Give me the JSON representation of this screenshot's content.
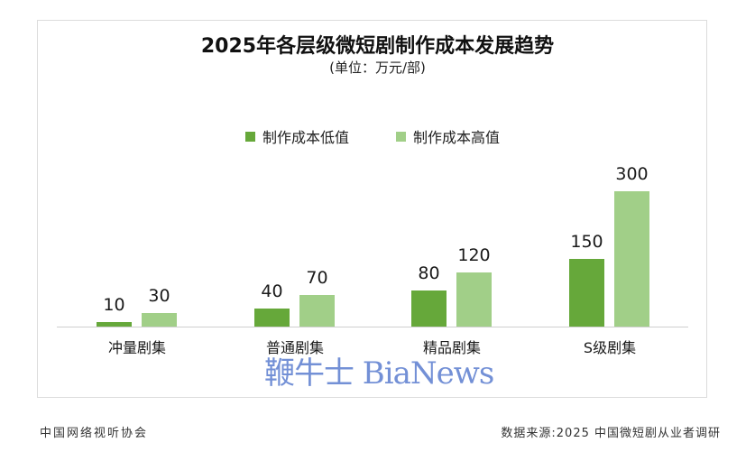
{
  "chart": {
    "title": "2025年各层级微短剧制作成本发展趋势",
    "subtitle": "(单位：万元/部)",
    "legend": [
      {
        "label": "制作成本低值",
        "color": "#66a83a"
      },
      {
        "label": "制作成本高值",
        "color": "#a1cf88"
      }
    ]
  },
  "chart_data": {
    "type": "bar",
    "title": "2025年各层级微短剧制作成本发展趋势",
    "subtitle": "(单位：万元/部)",
    "xlabel": "",
    "ylabel": "万元/部",
    "categories": [
      "冲量剧集",
      "普通剧集",
      "精品剧集",
      "S级剧集"
    ],
    "series": [
      {
        "name": "制作成本低值",
        "color": "#66a83a",
        "values": [
          10,
          40,
          80,
          150
        ]
      },
      {
        "name": "制作成本高值",
        "color": "#a1cf88",
        "values": [
          30,
          70,
          120,
          300
        ]
      }
    ],
    "data_labels": true,
    "grid": false,
    "legend_position": "top",
    "ylim": [
      0,
      300
    ]
  },
  "watermark": "鞭牛士 BiaNews",
  "footer": {
    "left": "中国网络视听协会",
    "right": "数据来源:2025 中国微短剧从业者调研"
  },
  "labels": {
    "v0_low": "10",
    "v0_high": "30",
    "v1_low": "40",
    "v1_high": "70",
    "v2_low": "80",
    "v2_high": "120",
    "v3_low": "150",
    "v3_high": "300"
  }
}
